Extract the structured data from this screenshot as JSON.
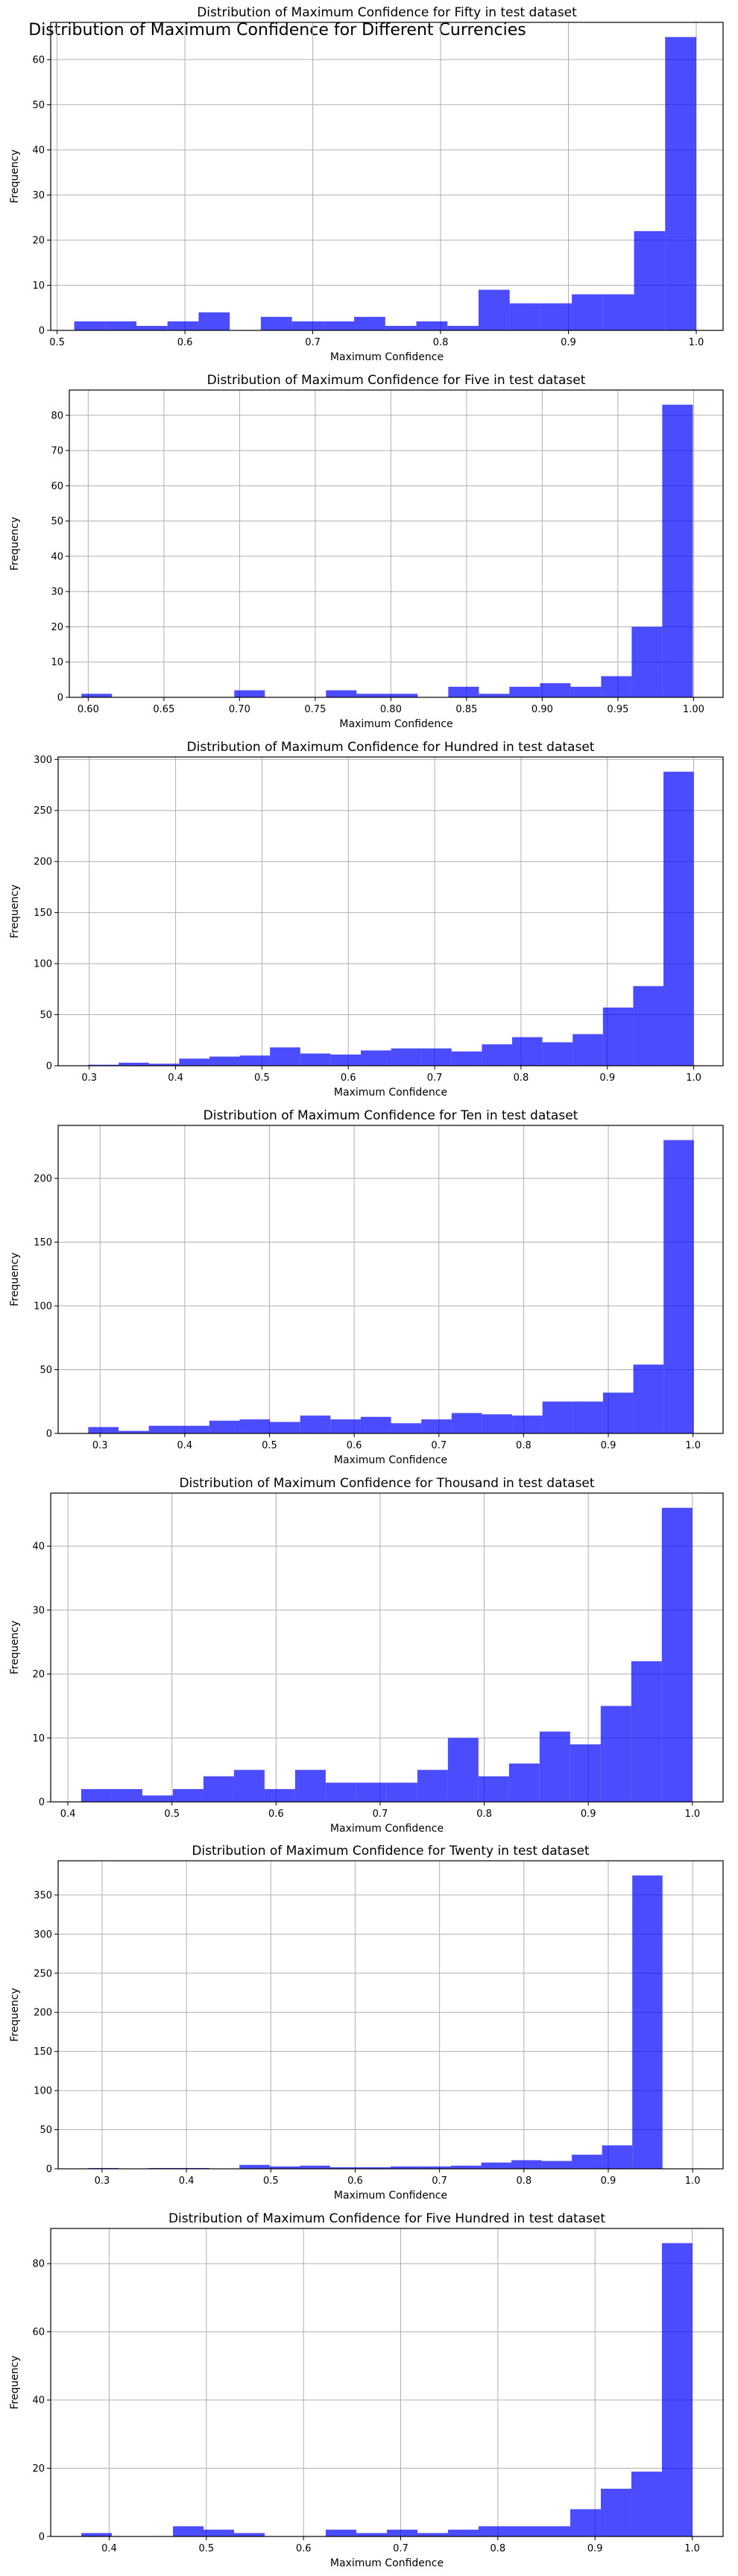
{
  "figure": {
    "suptitle": "Distribution of Maximum Confidence for Different Currencies"
  },
  "chart_data": [
    {
      "type": "bar",
      "title": "Distribution of Maximum Confidence for Fifty in test dataset",
      "xlabel": "Maximum Confidence",
      "ylabel": "Frequency",
      "xlim": [
        0.495,
        1.021
      ],
      "ylim": [
        0,
        68.25
      ],
      "xticks": [
        0.5,
        0.6,
        0.7,
        0.8,
        0.9,
        1.0
      ],
      "xtick_labels": [
        "0.5",
        "0.6",
        "0.7",
        "0.8",
        "0.9",
        "1.0"
      ],
      "yticks": [
        0,
        10,
        20,
        30,
        40,
        50,
        60
      ],
      "grid": true,
      "color": "#0000ff",
      "bin_start": 0.5134,
      "bin_width": 0.02433,
      "counts": [
        2,
        2,
        1,
        2,
        4,
        0,
        3,
        2,
        2,
        3,
        1,
        2,
        1,
        9,
        6,
        6,
        8,
        8,
        22,
        65
      ]
    },
    {
      "type": "bar",
      "title": "Distribution of Maximum Confidence for Five in test dataset",
      "xlabel": "Maximum Confidence",
      "ylabel": "Frequency",
      "xlim": [
        0.5875,
        1.0195
      ],
      "ylim": [
        0,
        87.15
      ],
      "xticks": [
        0.6,
        0.65,
        0.7,
        0.75,
        0.8,
        0.85,
        0.9,
        0.95,
        1.0
      ],
      "xtick_labels": [
        "0.60",
        "0.65",
        "0.70",
        "0.75",
        "0.80",
        "0.85",
        "0.90",
        "0.95",
        "1.00"
      ],
      "yticks": [
        0,
        10,
        20,
        30,
        40,
        50,
        60,
        70,
        80
      ],
      "grid": true,
      "color": "#0000ff",
      "bin_start": 0.5955,
      "bin_width": 0.0202,
      "counts": [
        1,
        0,
        0,
        0,
        0,
        2,
        0,
        0,
        2,
        1,
        1,
        0,
        3,
        1,
        3,
        4,
        3,
        6,
        20,
        83
      ]
    },
    {
      "type": "bar",
      "title": "Distribution of Maximum Confidence for Hundred in test dataset",
      "xlabel": "Maximum Confidence",
      "ylabel": "Frequency",
      "xlim": [
        0.264,
        1.034
      ],
      "ylim": [
        0,
        302.4
      ],
      "xticks": [
        0.3,
        0.4,
        0.5,
        0.6,
        0.7,
        0.8,
        0.9,
        1.0
      ],
      "xtick_labels": [
        "0.3",
        "0.4",
        "0.5",
        "0.6",
        "0.7",
        "0.8",
        "0.9",
        "1.0"
      ],
      "yticks": [
        0,
        50,
        100,
        150,
        200,
        250,
        300
      ],
      "grid": true,
      "color": "#0000ff",
      "bin_start": 0.299,
      "bin_width": 0.03505,
      "counts": [
        1,
        3,
        2,
        7,
        9,
        10,
        18,
        12,
        11,
        15,
        17,
        17,
        14,
        21,
        28,
        23,
        31,
        57,
        78,
        288
      ]
    },
    {
      "type": "bar",
      "title": "Distribution of Maximum Confidence for Ten in test dataset",
      "xlabel": "Maximum Confidence",
      "ylabel": "Frequency",
      "xlim": [
        0.2505,
        1.0355
      ],
      "ylim": [
        0,
        241.5
      ],
      "xticks": [
        0.3,
        0.4,
        0.5,
        0.6,
        0.7,
        0.8,
        0.9,
        1.0
      ],
      "xtick_labels": [
        "0.3",
        "0.4",
        "0.5",
        "0.6",
        "0.7",
        "0.8",
        "0.9",
        "1.0"
      ],
      "yticks": [
        0,
        50,
        100,
        150,
        200
      ],
      "grid": true,
      "color": "#0000ff",
      "bin_start": 0.286,
      "bin_width": 0.03575,
      "counts": [
        5,
        2,
        6,
        6,
        10,
        11,
        9,
        14,
        11,
        13,
        8,
        11,
        16,
        15,
        14,
        25,
        25,
        32,
        54,
        230
      ]
    },
    {
      "type": "bar",
      "title": "Distribution of Maximum Confidence for Thousand in test dataset",
      "xlabel": "Maximum Confidence",
      "ylabel": "Frequency",
      "xlim": [
        0.3835,
        1.0295
      ],
      "ylim": [
        0,
        48.3
      ],
      "xticks": [
        0.4,
        0.5,
        0.6,
        0.7,
        0.8,
        0.9,
        1.0
      ],
      "xtick_labels": [
        "0.4",
        "0.5",
        "0.6",
        "0.7",
        "0.8",
        "0.9",
        "1.0"
      ],
      "yticks": [
        0,
        10,
        20,
        30,
        40
      ],
      "grid": true,
      "color": "#0000ff",
      "bin_start": 0.4128,
      "bin_width": 0.02936,
      "counts": [
        2,
        2,
        1,
        2,
        4,
        5,
        2,
        5,
        3,
        3,
        3,
        5,
        10,
        4,
        6,
        11,
        9,
        15,
        22,
        46
      ]
    },
    {
      "type": "bar",
      "title": "Distribution of Maximum Confidence for Twenty in test dataset",
      "xlabel": "Maximum Confidence",
      "ylabel": "Frequency",
      "xlim": [
        0.2479,
        1.0361
      ],
      "ylim": [
        0,
        393.75
      ],
      "xticks": [
        0.3,
        0.4,
        0.5,
        0.6,
        0.7,
        0.8,
        0.9,
        1.0
      ],
      "xtick_labels": [
        "0.3",
        "0.4",
        "0.5",
        "0.6",
        "0.7",
        "0.8",
        "0.9",
        "1.0"
      ],
      "yticks": [
        0,
        50,
        100,
        150,
        200,
        250,
        300,
        350
      ],
      "grid": true,
      "color": "#0000ff",
      "bin_start": 0.2837,
      "bin_width": 0.03582,
      "counts": [
        1,
        0,
        1,
        1,
        0,
        5,
        3,
        4,
        2,
        2,
        3,
        3,
        4,
        8,
        11,
        10,
        18,
        30,
        375,
        0
      ]
    },
    {
      "type": "bar",
      "title": "Distribution of Maximum Confidence for Five Hundred in test dataset",
      "xlabel": "Maximum Confidence",
      "ylabel": "Frequency",
      "xlim": [
        0.3398,
        1.0318
      ],
      "ylim": [
        0,
        90.3
      ],
      "xticks": [
        0.4,
        0.5,
        0.6,
        0.7,
        0.8,
        0.9,
        1.0
      ],
      "xtick_labels": [
        "0.4",
        "0.5",
        "0.6",
        "0.7",
        "0.8",
        "0.9",
        "1.0"
      ],
      "yticks": [
        0,
        20,
        40,
        60,
        80
      ],
      "grid": true,
      "color": "#0000ff",
      "bin_start": 0.3713,
      "bin_width": 0.03145,
      "counts": [
        1,
        0,
        0,
        3,
        2,
        1,
        0,
        0,
        2,
        1,
        2,
        1,
        2,
        3,
        3,
        3,
        8,
        14,
        19,
        86
      ]
    }
  ]
}
